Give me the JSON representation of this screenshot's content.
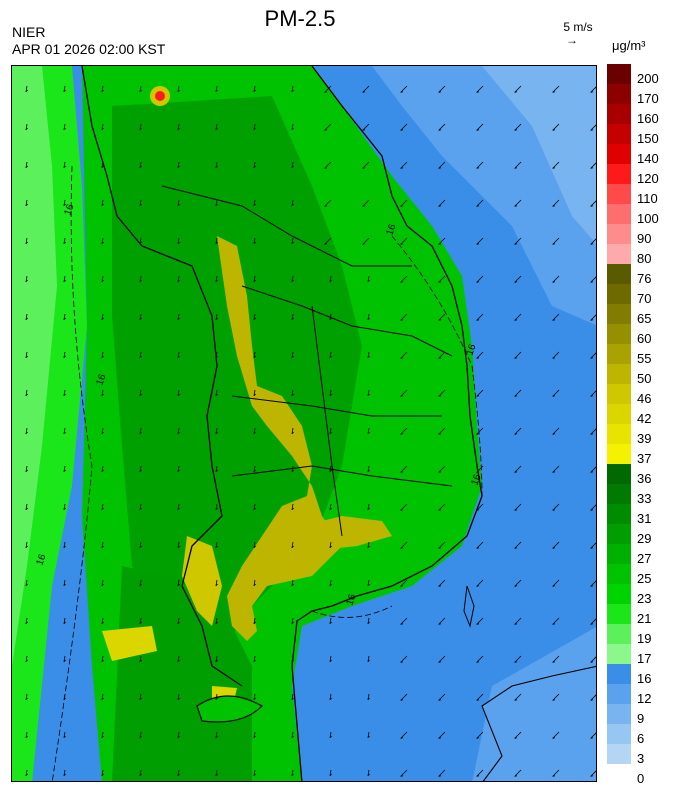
{
  "header": {
    "title": "PM-2.5",
    "agency": "NIER",
    "datetime": "APR 01 2026 02:00 KST",
    "wind_reference": "5 m/s",
    "wind_reference_arrow": "→",
    "units": "μg/m³"
  },
  "legend": {
    "labels": [
      "200",
      "170",
      "160",
      "150",
      "140",
      "120",
      "110",
      "100",
      "90",
      "80",
      "76",
      "70",
      "65",
      "60",
      "55",
      "50",
      "46",
      "42",
      "39",
      "37",
      "36",
      "33",
      "31",
      "29",
      "27",
      "25",
      "23",
      "21",
      "19",
      "17",
      "16",
      "12",
      "9",
      "6",
      "3",
      "0"
    ],
    "colors": [
      "#6a0000",
      "#8c0000",
      "#a80000",
      "#c40000",
      "#e00000",
      "#ff1a1a",
      "#ff4a4a",
      "#ff6e6e",
      "#ff8c8c",
      "#ffaaaa",
      "#5a5a00",
      "#6e6a00",
      "#827c00",
      "#968f00",
      "#aaa200",
      "#bdb500",
      "#cfc800",
      "#dcd600",
      "#e8e400",
      "#f5f200",
      "#006a00",
      "#007a00",
      "#008c00",
      "#009e00",
      "#00b000",
      "#00c200",
      "#00d400",
      "#1ae61a",
      "#5cf05c",
      "#8cf88c",
      "#3a8ee8",
      "#5aa2ee",
      "#78b4f0",
      "#96c6f2",
      "#b4d6f4"
    ]
  },
  "map": {
    "contour_label": "16",
    "contour_label_count": 7
  }
}
